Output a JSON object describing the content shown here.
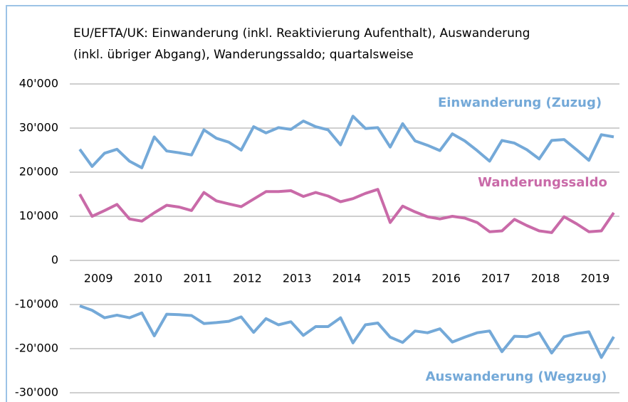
{
  "chart_data": {
    "type": "line",
    "title": [
      "EU/EFTA/UK: Einwanderung (inkl. Reaktivierung Aufenthalt), Auswanderung",
      "(inkl. übriger Abgang), Wanderungssaldo; quartalsweise"
    ],
    "categories": [
      null,
      "2009",
      null,
      null,
      null,
      "2010",
      null,
      null,
      null,
      "2011",
      null,
      null,
      null,
      "2012",
      null,
      null,
      null,
      "2013",
      null,
      null,
      null,
      "2014",
      null,
      null,
      null,
      "2015",
      null,
      null,
      null,
      "2016",
      null,
      null,
      null,
      "2017",
      null,
      null,
      null,
      "2018",
      null,
      null,
      null,
      "2019",
      null,
      null
    ],
    "series": [
      {
        "name": "Einwanderung (Zuzug)",
        "color": "#74a9d8",
        "values": [
          25200,
          21300,
          24300,
          25200,
          22500,
          21000,
          28000,
          24800,
          24400,
          23900,
          29600,
          27700,
          26800,
          25000,
          30300,
          28900,
          30100,
          29700,
          31600,
          30300,
          29600,
          26200,
          32700,
          29900,
          30100,
          25700,
          31000,
          27100,
          26100,
          24900,
          28700,
          27100,
          24900,
          22500,
          27200,
          26600,
          25100,
          23000,
          27200,
          27400,
          25100,
          22700,
          28500,
          28000
        ]
      },
      {
        "name": "Wanderungssaldo",
        "color": "#c96aa8",
        "values": [
          15000,
          10000,
          11300,
          12700,
          9400,
          8900,
          10800,
          12500,
          12100,
          11300,
          15400,
          13500,
          12800,
          12200,
          13900,
          15600,
          15600,
          15800,
          14500,
          15400,
          14600,
          13300,
          14000,
          15200,
          16100,
          8600,
          12300,
          11000,
          9900,
          9400,
          10000,
          9600,
          8600,
          6500,
          6700,
          9300,
          7900,
          6700,
          6300,
          9900,
          8300,
          6500,
          6700,
          10800
        ]
      },
      {
        "name": "Auswanderung (Wegzug)",
        "color": "#74a9d8",
        "values": [
          -10300,
          -11300,
          -13000,
          -12400,
          -13000,
          -11900,
          -17100,
          -12200,
          -12300,
          -12500,
          -14300,
          -14100,
          -13800,
          -12800,
          -16300,
          -13200,
          -14600,
          -13900,
          -17000,
          -15000,
          -15000,
          -13000,
          -18700,
          -14600,
          -14200,
          -17400,
          -18600,
          -16000,
          -16400,
          -15500,
          -18500,
          -17400,
          -16400,
          -16000,
          -20700,
          -17200,
          -17300,
          -16400,
          -21000,
          -17300,
          -16600,
          -16200,
          -22000,
          -17300
        ]
      }
    ],
    "ylim": [
      -30000,
      40000
    ],
    "yticks": [
      {
        "value": -30000,
        "label": "-30'000"
      },
      {
        "value": -20000,
        "label": "-20'000"
      },
      {
        "value": -10000,
        "label": "-10'000"
      },
      0,
      {
        "value": 10000,
        "label": "10'000"
      },
      {
        "value": 20000,
        "label": "20'000"
      },
      {
        "value": 30000,
        "label": "30'000"
      },
      {
        "value": 40000,
        "label": "40'000"
      }
    ],
    "grid": true
  }
}
